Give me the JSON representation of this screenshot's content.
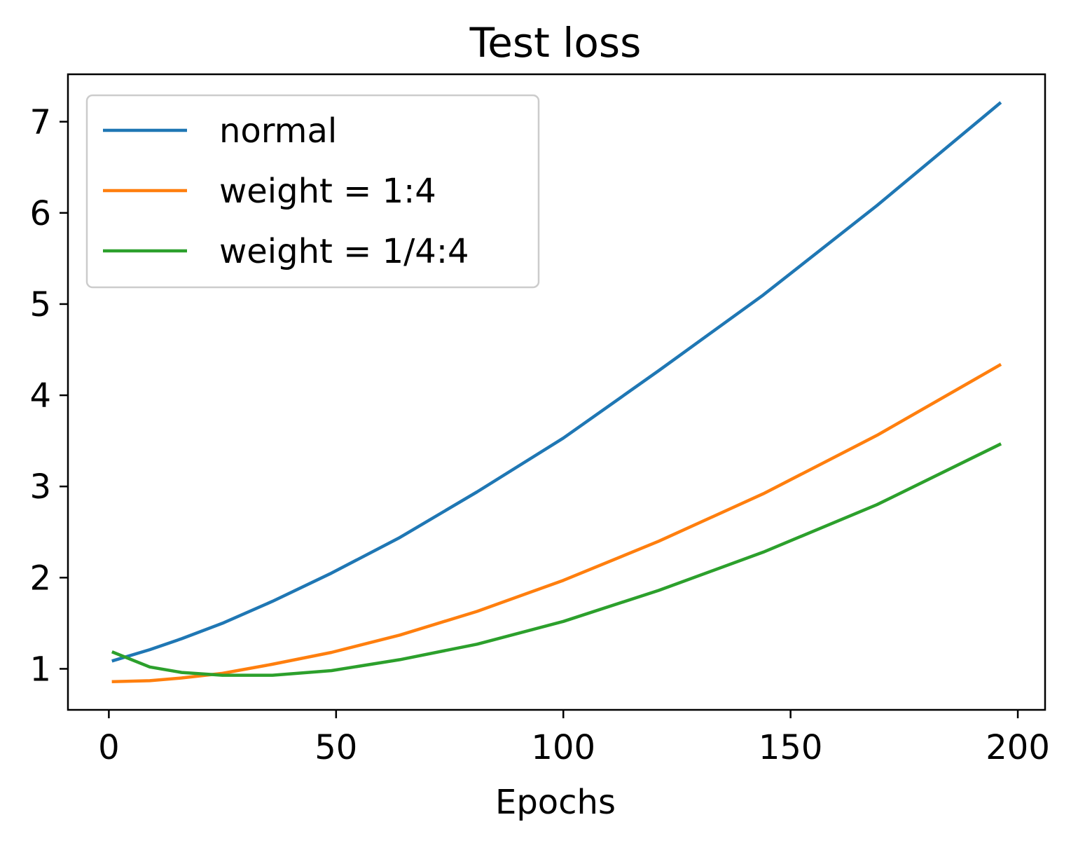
{
  "chart_data": {
    "type": "line",
    "title": "Test loss",
    "xlabel": "Epochs",
    "ylabel": "",
    "xlim": [
      -9,
      206
    ],
    "ylim": [
      0.55,
      7.52
    ],
    "xticks": [
      "0",
      "50",
      "100",
      "150",
      "200"
    ],
    "yticks": [
      "1",
      "2",
      "3",
      "4",
      "5",
      "6",
      "7"
    ],
    "grid": false,
    "legend_position": "top-left",
    "x": [
      1,
      9,
      16,
      25,
      36,
      49,
      64,
      81,
      100,
      121,
      144,
      169,
      196
    ],
    "series": [
      {
        "name": "normal",
        "color": "#1f77b4",
        "values": [
          1.09,
          1.21,
          1.33,
          1.5,
          1.74,
          2.05,
          2.44,
          2.94,
          3.53,
          4.27,
          5.1,
          6.08,
          7.2
        ]
      },
      {
        "name": "weight = 1:4",
        "color": "#ff7f0e",
        "values": [
          0.86,
          0.87,
          0.9,
          0.95,
          1.05,
          1.18,
          1.37,
          1.63,
          1.97,
          2.4,
          2.92,
          3.56,
          4.33
        ]
      },
      {
        "name": "weight = 1/4:4",
        "color": "#2ca02c",
        "values": [
          1.18,
          1.02,
          0.96,
          0.93,
          0.93,
          0.98,
          1.1,
          1.27,
          1.52,
          1.86,
          2.28,
          2.8,
          3.46
        ]
      }
    ]
  }
}
